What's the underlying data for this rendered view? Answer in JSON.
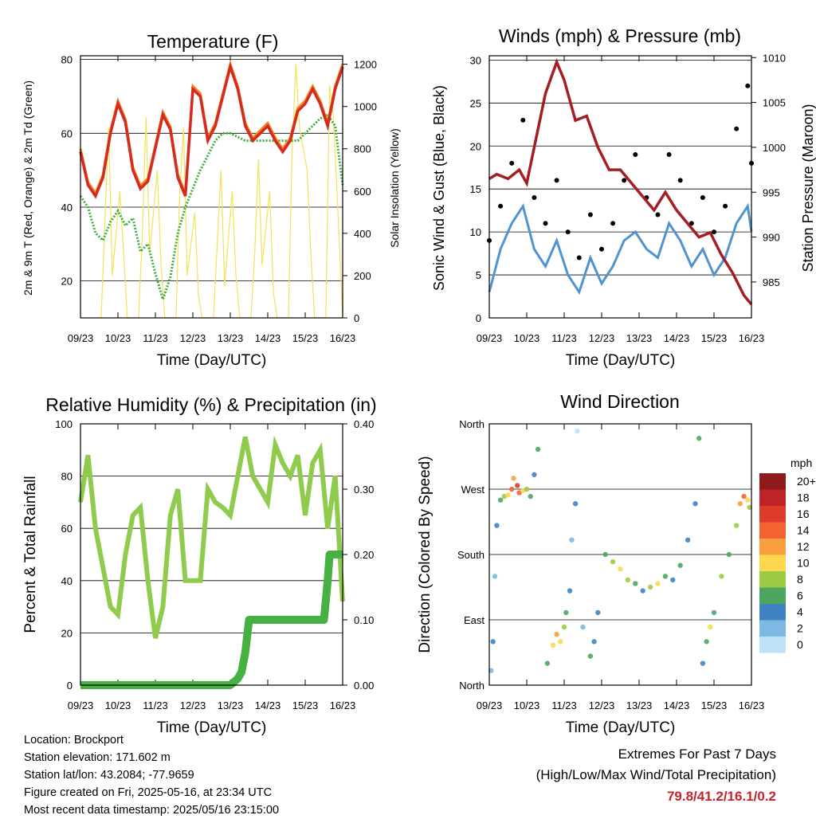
{
  "chart_data": [
    {
      "type": "line",
      "title": "Temperature (F)",
      "xlabel": "Time (Day/UTC)",
      "ylabel": "2m & 9m T (Red, Orange) & 2m Td (Green)",
      "y2label": "Solar Insolation (Yellow)",
      "categories": [
        "09/23",
        "10/23",
        "11/23",
        "12/23",
        "13/23",
        "14/23",
        "15/23",
        "16/23"
      ],
      "ylim": [
        10,
        81
      ],
      "y_ticks": [
        20,
        40,
        60,
        80
      ],
      "y2lim": [
        0,
        1240
      ],
      "y2_ticks": [
        0,
        200,
        400,
        600,
        800,
        1000,
        1200
      ],
      "colors": {
        "t2m": "#d42a20",
        "t9m": "#f08a24",
        "td": "#3fae3f",
        "solar": "#f5e15a"
      },
      "series": [
        {
          "name": "2m T",
          "axis": "y",
          "x": [
            9.0,
            9.2,
            9.4,
            9.6,
            9.8,
            10.0,
            10.2,
            10.4,
            10.6,
            10.8,
            11.0,
            11.2,
            11.4,
            11.6,
            11.8,
            12.0,
            12.2,
            12.4,
            12.6,
            12.8,
            13.0,
            13.2,
            13.4,
            13.6,
            13.8,
            14.0,
            14.2,
            14.4,
            14.6,
            14.8,
            15.0,
            15.2,
            15.4,
            15.6,
            15.8,
            16.0
          ],
          "values": [
            55,
            46,
            43,
            48,
            60,
            68,
            63,
            50,
            45,
            47,
            56,
            65,
            61,
            48,
            43,
            72,
            70,
            58,
            62,
            70,
            78,
            72,
            62,
            58,
            60,
            62,
            58,
            55,
            58,
            66,
            68,
            72,
            68,
            62,
            72,
            78
          ]
        },
        {
          "name": "2m Td",
          "axis": "y",
          "x": [
            9.0,
            9.2,
            9.4,
            9.6,
            9.8,
            10.0,
            10.2,
            10.4,
            10.6,
            10.8,
            11.0,
            11.2,
            11.4,
            11.6,
            11.8,
            12.0,
            12.2,
            12.4,
            12.6,
            12.8,
            13.0,
            13.2,
            13.4,
            13.6,
            13.8,
            14.0,
            14.2,
            14.4,
            14.6,
            14.8,
            15.0,
            15.2,
            15.4,
            15.6,
            15.8,
            16.0
          ],
          "values": [
            43,
            40,
            33,
            31,
            36,
            39,
            35,
            37,
            28,
            30,
            22,
            15,
            21,
            33,
            40,
            45,
            50,
            54,
            58,
            60,
            60,
            59,
            58,
            58,
            58,
            58,
            58,
            58,
            58,
            58,
            60,
            62,
            64,
            65,
            62,
            46
          ]
        },
        {
          "name": "Solar Insolation",
          "axis": "y2",
          "x": [
            9.55,
            9.65,
            9.75,
            9.85,
            10.05,
            10.15,
            10.25,
            10.55,
            10.65,
            10.75,
            10.85,
            11.05,
            11.15,
            11.25,
            11.55,
            11.65,
            11.75,
            11.85,
            12.05,
            12.15,
            12.25,
            12.55,
            12.65,
            12.75,
            12.85,
            13.05,
            13.15,
            13.25,
            13.55,
            13.65,
            13.75,
            13.85,
            14.05,
            14.15,
            14.25,
            14.55,
            14.65,
            14.75,
            14.85,
            15.05,
            15.15,
            15.25,
            15.55,
            15.65,
            15.75,
            15.85,
            16.0
          ],
          "values": [
            0,
            450,
            900,
            200,
            600,
            300,
            0,
            0,
            400,
            950,
            300,
            700,
            250,
            0,
            0,
            600,
            900,
            200,
            500,
            100,
            0,
            0,
            350,
            700,
            150,
            600,
            200,
            0,
            0,
            300,
            750,
            250,
            600,
            120,
            0,
            0,
            800,
            1200,
            900,
            700,
            300,
            0,
            0,
            1100,
            950,
            600,
            0
          ]
        }
      ]
    },
    {
      "type": "line",
      "title": "Winds (mph) & Pressure (mb)",
      "xlabel": "Time (Day/UTC)",
      "ylabel": "Sonic Wind & Gust (Blue, Black)",
      "y2label": "Station Pressure (Maroon)",
      "categories": [
        "09/23",
        "10/23",
        "11/23",
        "12/23",
        "13/23",
        "14/23",
        "15/23",
        "16/23"
      ],
      "ylim": [
        0,
        30.5
      ],
      "y_ticks": [
        0,
        5,
        10,
        15,
        20,
        25,
        30
      ],
      "y2lim": [
        981.0,
        1010.2
      ],
      "y2_ticks": [
        985,
        990,
        995,
        1000,
        1005,
        1010
      ],
      "colors": {
        "wind": "#4f94d0",
        "gust": "#000000",
        "pressure": "#a31f23"
      },
      "series": [
        {
          "name": "Sonic Wind",
          "axis": "y",
          "x": [
            9.0,
            9.3,
            9.6,
            9.9,
            10.2,
            10.5,
            10.8,
            11.1,
            11.4,
            11.7,
            12.0,
            12.3,
            12.6,
            12.9,
            13.2,
            13.5,
            13.8,
            14.1,
            14.4,
            14.7,
            15.0,
            15.3,
            15.6,
            15.9,
            16.0
          ],
          "values": [
            3,
            8,
            11,
            13,
            8,
            6,
            9,
            5,
            3,
            7,
            4,
            6,
            9,
            10,
            8,
            7,
            11,
            9,
            6,
            8,
            5,
            7,
            11,
            13,
            10
          ]
        },
        {
          "name": "Gust",
          "axis": "y",
          "x": [
            9.0,
            9.3,
            9.6,
            9.9,
            10.2,
            10.5,
            10.8,
            11.1,
            11.4,
            11.7,
            12.0,
            12.3,
            12.6,
            12.9,
            13.2,
            13.5,
            13.8,
            14.1,
            14.4,
            14.7,
            15.0,
            15.3,
            15.6,
            15.9,
            16.0
          ],
          "values": [
            9,
            13,
            18,
            23,
            14,
            11,
            16,
            10,
            7,
            12,
            8,
            11,
            16,
            19,
            14,
            12,
            19,
            16,
            11,
            14,
            10,
            13,
            22,
            27,
            18
          ]
        },
        {
          "name": "Station Pressure",
          "axis": "y2",
          "x": [
            9.0,
            9.2,
            9.5,
            9.8,
            10.0,
            10.2,
            10.5,
            10.8,
            11.0,
            11.3,
            11.6,
            11.9,
            12.2,
            12.5,
            12.8,
            13.1,
            13.4,
            13.7,
            14.0,
            14.3,
            14.6,
            14.9,
            15.2,
            15.5,
            15.8,
            16.0
          ],
          "values": [
            996.5,
            997.0,
            996.5,
            997.5,
            996.0,
            1000.0,
            1006.0,
            1009.5,
            1007.5,
            1003.0,
            1003.5,
            1000.0,
            997.5,
            997.5,
            996.0,
            994.5,
            993.0,
            995.0,
            993.0,
            991.5,
            990.0,
            990.5,
            988.0,
            986.0,
            983.5,
            982.5
          ]
        }
      ]
    },
    {
      "type": "line",
      "title": "Relative Humidity (%) & Precipitation (in)",
      "xlabel": "Time (Day/UTC)",
      "ylabel": "Percent & Total Rainfall",
      "categories": [
        "09/23",
        "10/23",
        "11/23",
        "12/23",
        "13/23",
        "14/23",
        "15/23",
        "16/23"
      ],
      "ylim": [
        0,
        100
      ],
      "y_ticks": [
        0,
        20,
        40,
        60,
        80,
        100
      ],
      "y2lim": [
        0,
        0.4
      ],
      "y2_ticks": [
        "0.00",
        "0.10",
        "0.20",
        "0.30",
        "0.40"
      ],
      "colors": {
        "rh": "#8fcb4d",
        "precip": "#46b042"
      },
      "series": [
        {
          "name": "Relative Humidity",
          "axis": "y",
          "x": [
            9.0,
            9.2,
            9.4,
            9.6,
            9.8,
            10.0,
            10.2,
            10.4,
            10.6,
            10.8,
            11.0,
            11.2,
            11.4,
            11.6,
            11.8,
            12.0,
            12.2,
            12.4,
            12.6,
            12.8,
            13.0,
            13.2,
            13.4,
            13.6,
            13.8,
            14.0,
            14.2,
            14.4,
            14.6,
            14.8,
            15.0,
            15.2,
            15.4,
            15.6,
            15.8,
            16.0
          ],
          "values": [
            70,
            88,
            60,
            45,
            30,
            27,
            50,
            65,
            68,
            40,
            18,
            30,
            65,
            75,
            40,
            40,
            40,
            75,
            70,
            68,
            65,
            80,
            95,
            80,
            75,
            70,
            92,
            85,
            80,
            88,
            65,
            85,
            90,
            60,
            80,
            32
          ]
        },
        {
          "name": "Total Precipitation",
          "axis": "y2",
          "x": [
            9.0,
            13.0,
            13.2,
            13.3,
            13.4,
            13.5,
            14.0,
            15.0,
            15.5,
            15.55,
            15.6,
            15.65,
            16.0
          ],
          "values": [
            0.0,
            0.0,
            0.01,
            0.02,
            0.05,
            0.1,
            0.1,
            0.1,
            0.1,
            0.13,
            0.16,
            0.2,
            0.2
          ]
        }
      ]
    },
    {
      "type": "scatter",
      "title": "Wind Direction",
      "xlabel": "Time (Day/UTC)",
      "ylabel": "Direction (Colored By Speed)",
      "categories": [
        "09/23",
        "10/23",
        "11/23",
        "12/23",
        "13/23",
        "14/23",
        "15/23",
        "16/23"
      ],
      "y_ticks": [
        "North",
        "East",
        "South",
        "West",
        "North"
      ],
      "ylim": [
        0,
        360
      ],
      "legend": {
        "position": "right",
        "title": "mph",
        "labels": [
          "20+",
          "18",
          "16",
          "14",
          "12",
          "10",
          "8",
          "6",
          "4",
          "2",
          "0"
        ],
        "colors": [
          "#8e1a1c",
          "#be2327",
          "#df3b2c",
          "#f16432",
          "#f99f3f",
          "#fdd84f",
          "#9ccb44",
          "#4da660",
          "#3f82c1",
          "#7db9e2",
          "#bfe2f7"
        ]
      },
      "points": [
        {
          "x": 9.05,
          "y": 20,
          "speed": 2
        },
        {
          "x": 9.1,
          "y": 60,
          "speed": 4
        },
        {
          "x": 9.15,
          "y": 150,
          "speed": 2
        },
        {
          "x": 9.2,
          "y": 220,
          "speed": 4
        },
        {
          "x": 9.3,
          "y": 255,
          "speed": 6
        },
        {
          "x": 9.4,
          "y": 260,
          "speed": 8
        },
        {
          "x": 9.5,
          "y": 262,
          "speed": 10
        },
        {
          "x": 9.6,
          "y": 270,
          "speed": 14
        },
        {
          "x": 9.65,
          "y": 285,
          "speed": 12
        },
        {
          "x": 9.75,
          "y": 275,
          "speed": 16
        },
        {
          "x": 9.8,
          "y": 265,
          "speed": 14
        },
        {
          "x": 9.9,
          "y": 268,
          "speed": 10
        },
        {
          "x": 10.0,
          "y": 270,
          "speed": 8
        },
        {
          "x": 10.1,
          "y": 260,
          "speed": 6
        },
        {
          "x": 10.2,
          "y": 290,
          "speed": 4
        },
        {
          "x": 10.3,
          "y": 325,
          "speed": 6
        },
        {
          "x": 10.55,
          "y": 30,
          "speed": 6
        },
        {
          "x": 10.7,
          "y": 55,
          "speed": 10
        },
        {
          "x": 10.8,
          "y": 70,
          "speed": 12
        },
        {
          "x": 10.9,
          "y": 60,
          "speed": 10
        },
        {
          "x": 11.0,
          "y": 80,
          "speed": 8
        },
        {
          "x": 11.05,
          "y": 100,
          "speed": 6
        },
        {
          "x": 11.15,
          "y": 130,
          "speed": 4
        },
        {
          "x": 11.2,
          "y": 200,
          "speed": 2
        },
        {
          "x": 11.3,
          "y": 250,
          "speed": 4
        },
        {
          "x": 11.35,
          "y": 350,
          "speed": 0
        },
        {
          "x": 11.5,
          "y": 80,
          "speed": 2
        },
        {
          "x": 11.7,
          "y": 40,
          "speed": 6
        },
        {
          "x": 11.8,
          "y": 60,
          "speed": 4
        },
        {
          "x": 11.9,
          "y": 100,
          "speed": 4
        },
        {
          "x": 12.1,
          "y": 180,
          "speed": 6
        },
        {
          "x": 12.3,
          "y": 170,
          "speed": 8
        },
        {
          "x": 12.5,
          "y": 160,
          "speed": 10
        },
        {
          "x": 12.7,
          "y": 145,
          "speed": 8
        },
        {
          "x": 12.9,
          "y": 140,
          "speed": 6
        },
        {
          "x": 13.1,
          "y": 130,
          "speed": 4
        },
        {
          "x": 13.3,
          "y": 135,
          "speed": 8
        },
        {
          "x": 13.5,
          "y": 140,
          "speed": 10
        },
        {
          "x": 13.7,
          "y": 150,
          "speed": 6
        },
        {
          "x": 13.9,
          "y": 145,
          "speed": 4
        },
        {
          "x": 14.1,
          "y": 165,
          "speed": 6
        },
        {
          "x": 14.3,
          "y": 200,
          "speed": 4
        },
        {
          "x": 14.5,
          "y": 250,
          "speed": 4
        },
        {
          "x": 14.6,
          "y": 340,
          "speed": 6
        },
        {
          "x": 14.7,
          "y": 30,
          "speed": 4
        },
        {
          "x": 14.8,
          "y": 60,
          "speed": 6
        },
        {
          "x": 14.9,
          "y": 80,
          "speed": 10
        },
        {
          "x": 15.0,
          "y": 100,
          "speed": 6
        },
        {
          "x": 15.2,
          "y": 150,
          "speed": 8
        },
        {
          "x": 15.4,
          "y": 180,
          "speed": 6
        },
        {
          "x": 15.6,
          "y": 220,
          "speed": 8
        },
        {
          "x": 15.7,
          "y": 250,
          "speed": 12
        },
        {
          "x": 15.8,
          "y": 260,
          "speed": 14
        },
        {
          "x": 15.9,
          "y": 255,
          "speed": 10
        },
        {
          "x": 15.95,
          "y": 245,
          "speed": 8
        }
      ]
    }
  ],
  "info": {
    "location": "Location: Brockport",
    "elevation": "Station elevation: 171.602 m",
    "latlon": "Station lat/lon: 43.2084; -77.9659",
    "created": "Figure created on Fri, 2025-05-16, at 23:34 UTC",
    "recent": "Most recent data timestamp: 2025/05/16 23:15:00"
  },
  "extremes": {
    "line1": "Extremes For Past 7 Days",
    "line2": "(High/Low/Max Wind/Total Precipitation)",
    "values": "79.8/41.2/16.1/0.2"
  }
}
